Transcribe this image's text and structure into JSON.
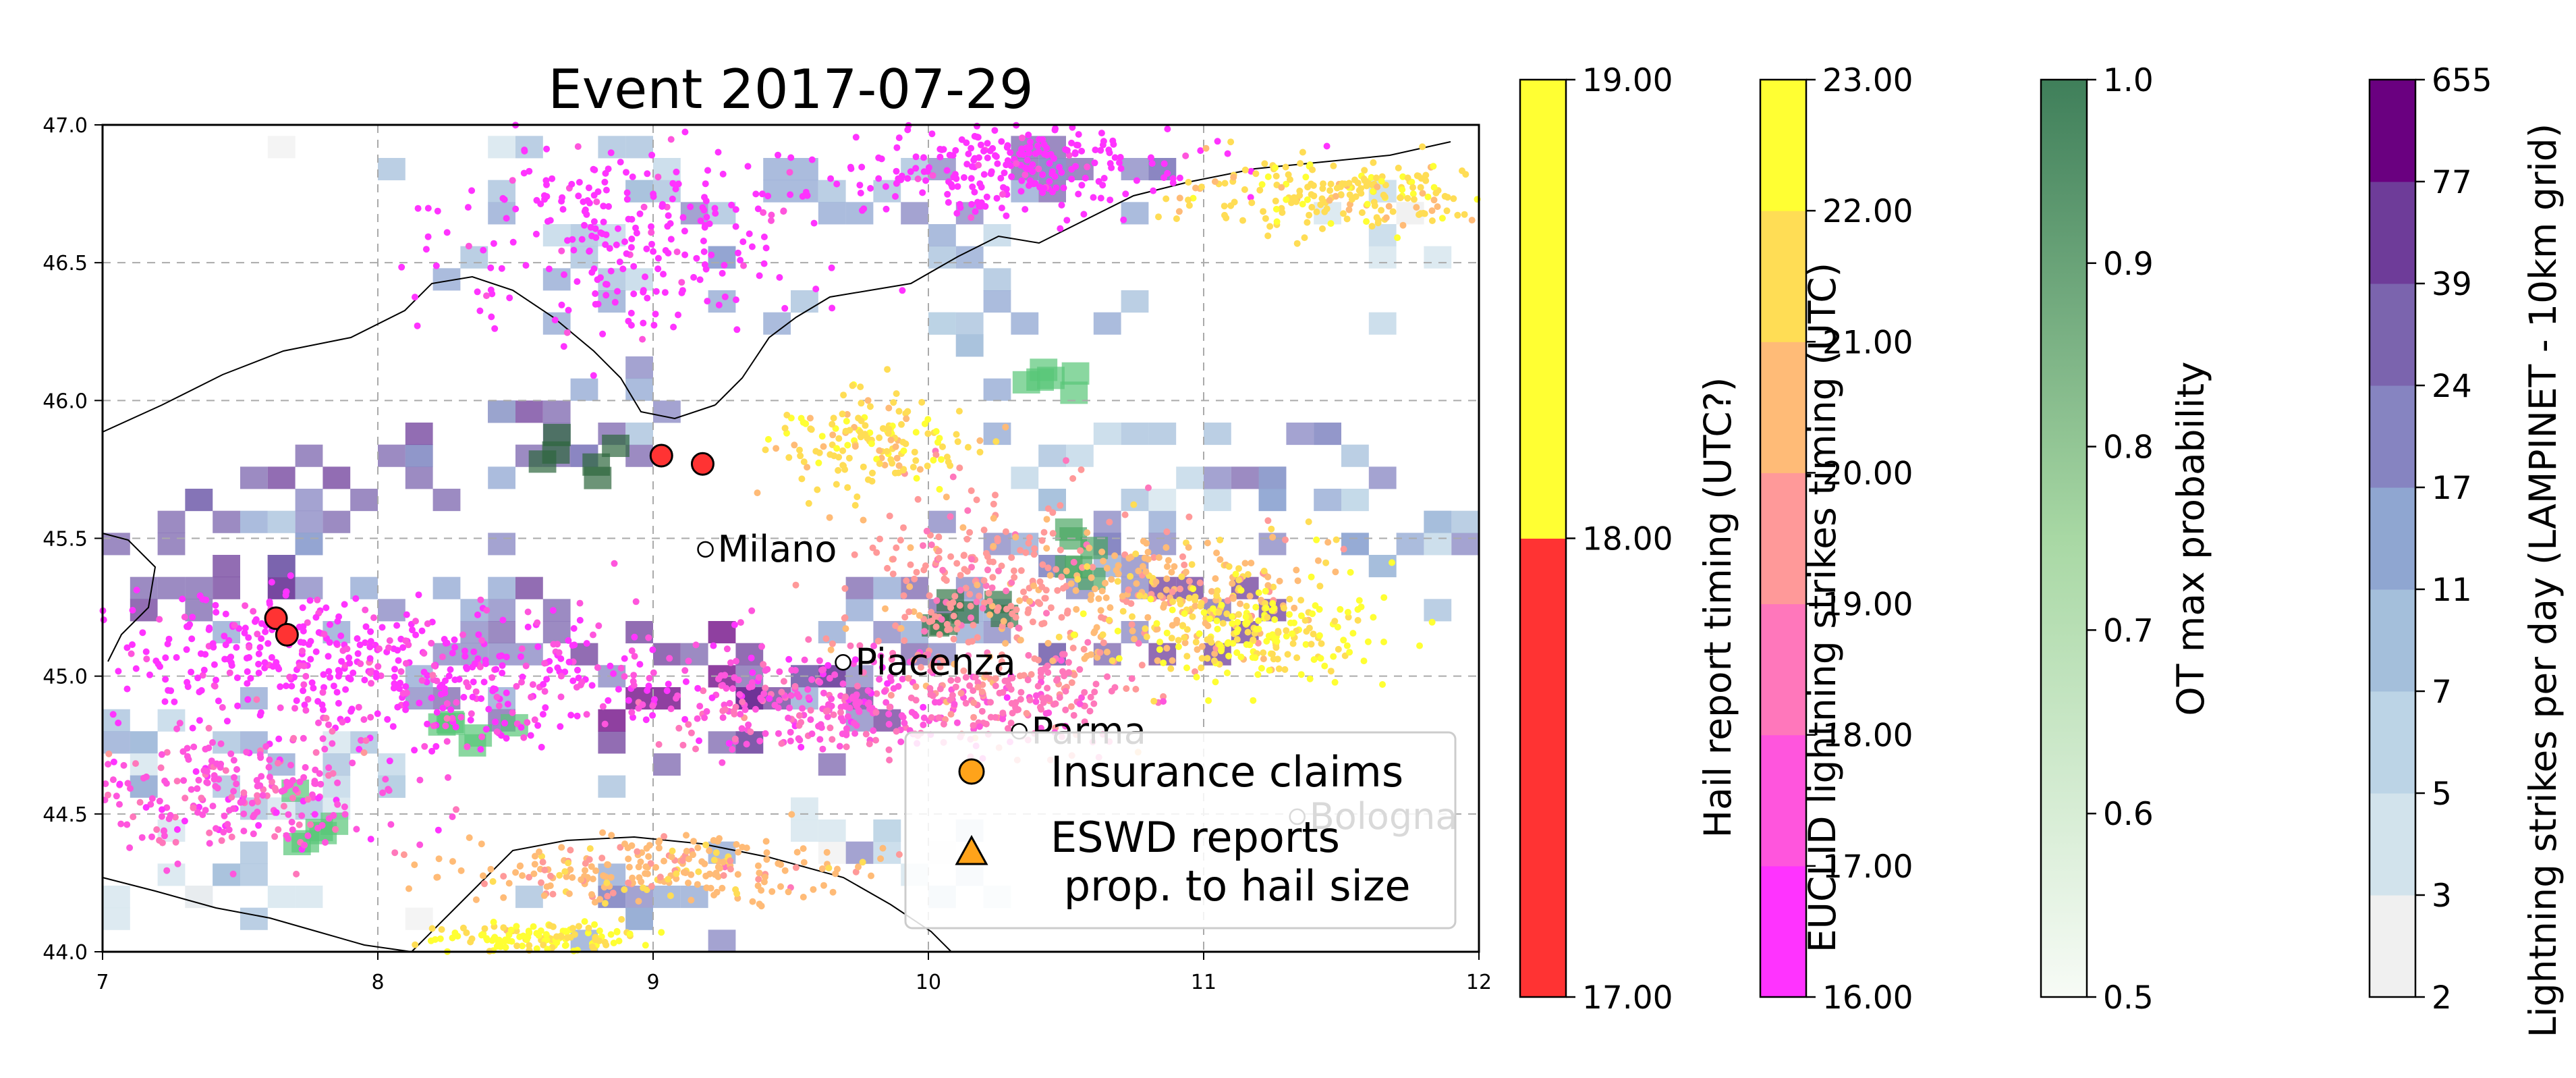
{
  "chart_data": {
    "type": "scatter",
    "title": "Event 2017-07-29",
    "xlabel": "",
    "ylabel": "",
    "xlim": [
      7,
      12
    ],
    "ylim": [
      44,
      47
    ],
    "x_ticks": [
      "7",
      "8",
      "9",
      "10",
      "11",
      "12"
    ],
    "y_ticks": [
      "44.0",
      "44.5",
      "45.0",
      "45.5",
      "46.0",
      "46.5",
      "47.0"
    ],
    "grid": true,
    "legend_position": "lower-right",
    "legend": [
      {
        "label": "Insurance claims",
        "marker": "circle",
        "color": "#ffa31a"
      },
      {
        "label": "ESWD reports\n prop. to hail size",
        "marker": "triangle",
        "color": "#ffa31a"
      }
    ],
    "cities": [
      {
        "name": "Milano",
        "lon": 9.19,
        "lat": 45.46
      },
      {
        "name": "Piacenza",
        "lon": 9.69,
        "lat": 45.05
      },
      {
        "name": "Parma",
        "lon": 10.33,
        "lat": 44.8
      },
      {
        "name": "Bologna",
        "lon": 11.34,
        "lat": 44.49
      }
    ],
    "hail_reports": [
      {
        "lon": 9.03,
        "lat": 45.8,
        "time": 17.9
      },
      {
        "lon": 9.18,
        "lat": 45.77,
        "time": 17.5
      },
      {
        "lon": 7.63,
        "lat": 45.21,
        "time": 17.4
      },
      {
        "lon": 7.67,
        "lat": 45.15,
        "time": 17.4
      }
    ],
    "lightning_clusters": [
      {
        "lon": 8.9,
        "lat": 46.6,
        "spread_lon": 0.6,
        "spread_lat": 0.3,
        "time": 16.3,
        "count": 260
      },
      {
        "lon": 7.6,
        "lat": 45.1,
        "spread_lon": 0.5,
        "spread_lat": 0.2,
        "time": 16.5,
        "count": 220
      },
      {
        "lon": 8.3,
        "lat": 45.0,
        "spread_lon": 0.7,
        "spread_lat": 0.2,
        "time": 16.8,
        "count": 300
      },
      {
        "lon": 7.5,
        "lat": 44.6,
        "spread_lon": 0.5,
        "spread_lat": 0.2,
        "time": 17.6,
        "count": 260
      },
      {
        "lon": 10.3,
        "lat": 46.85,
        "spread_lon": 0.5,
        "spread_lat": 0.15,
        "time": 16.2,
        "count": 260
      },
      {
        "lon": 9.6,
        "lat": 44.9,
        "spread_lon": 0.5,
        "spread_lat": 0.15,
        "time": 17.6,
        "count": 280
      },
      {
        "lon": 10.2,
        "lat": 45.3,
        "spread_lon": 0.4,
        "spread_lat": 0.3,
        "time": 19.5,
        "count": 300
      },
      {
        "lon": 10.3,
        "lat": 44.9,
        "spread_lon": 0.4,
        "spread_lat": 0.15,
        "time": 18.6,
        "count": 180
      },
      {
        "lon": 9.8,
        "lat": 45.85,
        "spread_lon": 0.3,
        "spread_lat": 0.15,
        "time": 21.6,
        "count": 160
      },
      {
        "lon": 10.9,
        "lat": 45.3,
        "spread_lon": 0.4,
        "spread_lat": 0.2,
        "time": 20.6,
        "count": 220
      },
      {
        "lon": 11.5,
        "lat": 46.75,
        "spread_lon": 0.5,
        "spread_lat": 0.1,
        "time": 21.6,
        "count": 220
      },
      {
        "lon": 11.2,
        "lat": 45.15,
        "spread_lon": 0.4,
        "spread_lat": 0.15,
        "time": 22.2,
        "count": 200
      },
      {
        "lon": 9.0,
        "lat": 44.3,
        "spread_lon": 0.6,
        "spread_lat": 0.1,
        "time": 20.4,
        "count": 240
      },
      {
        "lon": 8.6,
        "lat": 44.05,
        "spread_lon": 0.3,
        "spread_lat": 0.05,
        "time": 22.2,
        "count": 140
      }
    ],
    "lightning_density_cells": [
      {
        "lon": 7.5,
        "lat": 45.3,
        "density": 39
      },
      {
        "lon": 7.7,
        "lat": 45.6,
        "density": 24
      },
      {
        "lon": 8.2,
        "lat": 45.8,
        "density": 39
      },
      {
        "lon": 8.7,
        "lat": 45.9,
        "density": 24
      },
      {
        "lon": 8.1,
        "lat": 45.2,
        "density": 17
      },
      {
        "lon": 8.6,
        "lat": 45.0,
        "density": 39
      },
      {
        "lon": 9.3,
        "lat": 45.0,
        "density": 77
      },
      {
        "lon": 9.6,
        "lat": 44.9,
        "density": 39
      },
      {
        "lon": 10.0,
        "lat": 45.2,
        "density": 24
      },
      {
        "lon": 10.4,
        "lat": 45.5,
        "density": 17
      },
      {
        "lon": 10.8,
        "lat": 45.8,
        "density": 11
      },
      {
        "lon": 11.3,
        "lat": 45.7,
        "density": 24
      },
      {
        "lon": 11.6,
        "lat": 45.5,
        "density": 11
      },
      {
        "lon": 11.0,
        "lat": 45.2,
        "density": 39
      },
      {
        "lon": 10.3,
        "lat": 46.3,
        "density": 11
      },
      {
        "lon": 9.7,
        "lat": 46.7,
        "density": 17
      },
      {
        "lon": 8.9,
        "lat": 46.5,
        "density": 11
      },
      {
        "lon": 8.5,
        "lat": 46.8,
        "density": 7
      },
      {
        "lon": 10.4,
        "lat": 46.8,
        "density": 24
      },
      {
        "lon": 7.3,
        "lat": 44.7,
        "density": 11
      },
      {
        "lon": 8.0,
        "lat": 44.6,
        "density": 7
      },
      {
        "lon": 9.0,
        "lat": 44.2,
        "density": 17
      },
      {
        "lon": 9.8,
        "lat": 44.3,
        "density": 5
      },
      {
        "lon": 7.4,
        "lat": 44.2,
        "density": 7
      },
      {
        "lon": 11.7,
        "lat": 46.6,
        "density": 5
      }
    ],
    "ot_probability_cells": [
      {
        "lon": 8.75,
        "lat": 45.85,
        "p": 0.9
      },
      {
        "lon": 10.1,
        "lat": 45.25,
        "p": 0.85
      },
      {
        "lon": 10.5,
        "lat": 45.5,
        "p": 0.7
      },
      {
        "lon": 8.3,
        "lat": 44.85,
        "p": 0.6
      },
      {
        "lon": 10.4,
        "lat": 46.1,
        "p": 0.6
      },
      {
        "lon": 7.7,
        "lat": 44.5,
        "p": 0.6
      }
    ],
    "colorbars": [
      {
        "label": "Hail report timing (UTC?)",
        "ticks": [
          "19.00",
          "18.00",
          "17.00"
        ],
        "range": [
          17,
          19
        ],
        "colors": [
          "#ff3333",
          "#ffff33"
        ]
      },
      {
        "label": "EUCLID lightning strikes timing (UTC)",
        "ticks": [
          "23.00",
          "22.00",
          "21.00",
          "20.00",
          "19.00",
          "18.00",
          "17.00",
          "16.00"
        ],
        "range": [
          16,
          23
        ],
        "colors": [
          "#ff33ff",
          "#ff55dd",
          "#ff77bb",
          "#ff9999",
          "#ffbb77",
          "#ffdd55",
          "#ffff33"
        ]
      },
      {
        "label": "OT max probability",
        "ticks": [
          "1.0",
          "0.9",
          "0.8",
          "0.7",
          "0.6",
          "0.5"
        ],
        "range": [
          0.5,
          1.0
        ],
        "colors": [
          "#f7fbf6",
          "#3f7f5a"
        ]
      },
      {
        "label": "Lightning strikes per day (LAMPINET - 10km grid)",
        "ticks": [
          "655",
          "77",
          "39",
          "24",
          "17",
          "11",
          "7",
          "5",
          "3",
          "2"
        ],
        "boundaries": [
          2,
          3,
          5,
          7,
          11,
          17,
          24,
          39,
          77,
          655
        ],
        "colors": [
          "#f0f0f0",
          "#d2e3ec",
          "#bcd4e6",
          "#a4bfdb",
          "#8fa6d1",
          "#8684c1",
          "#7b64ae",
          "#6e3c99",
          "#6a0080"
        ]
      }
    ]
  }
}
